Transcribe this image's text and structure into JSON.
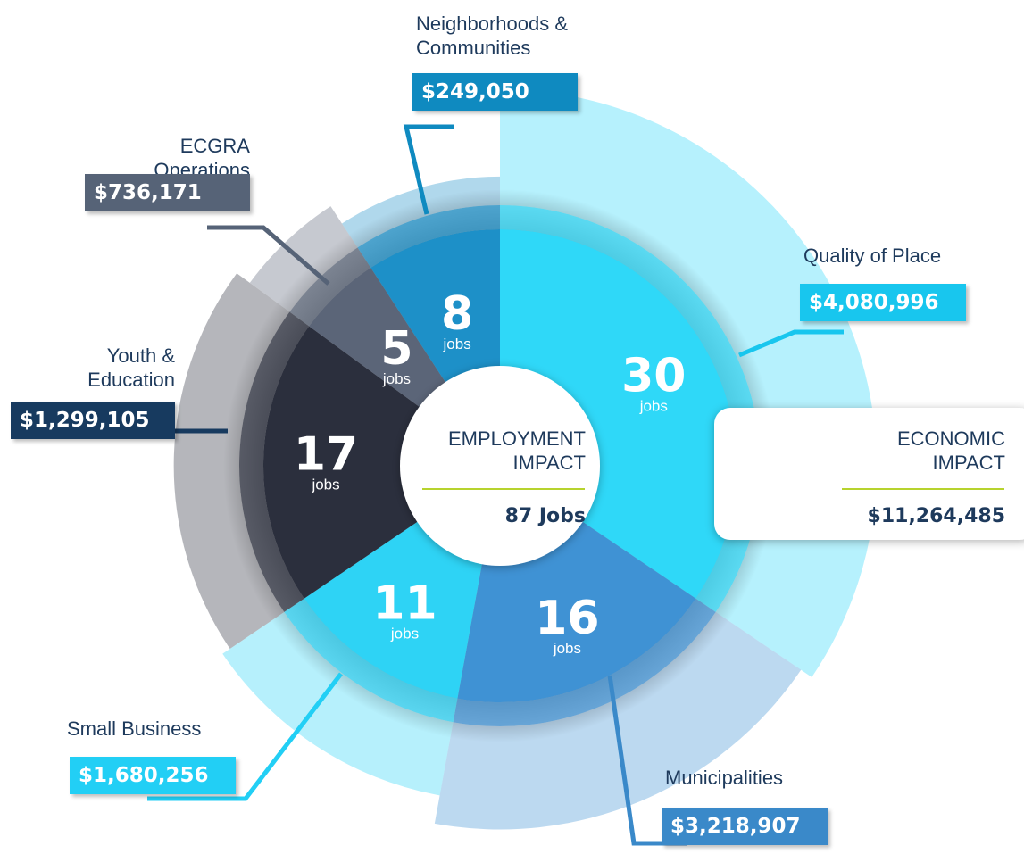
{
  "chart_data": {
    "type": "pie",
    "categories": [
      "Quality of Place",
      "Municipalities",
      "Small Business",
      "Youth & Education",
      "ECGRA Operations",
      "Neighborhoods & Communities"
    ],
    "values": [
      30,
      16,
      11,
      17,
      5,
      8
    ],
    "unit_label": "jobs",
    "amounts": [
      4080996,
      3218907,
      1680256,
      1299105,
      736171,
      249050
    ],
    "amount_labels": [
      "$4,080,996",
      "$3,218,907",
      "$1,680,256",
      "$1,299,105",
      "$736,171",
      "$249,050"
    ],
    "colors": [
      "#2fd8f8",
      "#3f92d4",
      "#2ed3f5",
      "#2b2f3d",
      "#5b6578",
      "#1d90c8"
    ],
    "label_colors": [
      "#18c6ee",
      "#3a89c9",
      "#22cff5",
      "#173a5f",
      "#566377",
      "#0f8ac0"
    ],
    "center_title": "EMPLOYMENT IMPACT",
    "center_label": "87 Jobs",
    "side_title": "ECONOMIC IMPACT",
    "side_label": "$11,264,485"
  }
}
